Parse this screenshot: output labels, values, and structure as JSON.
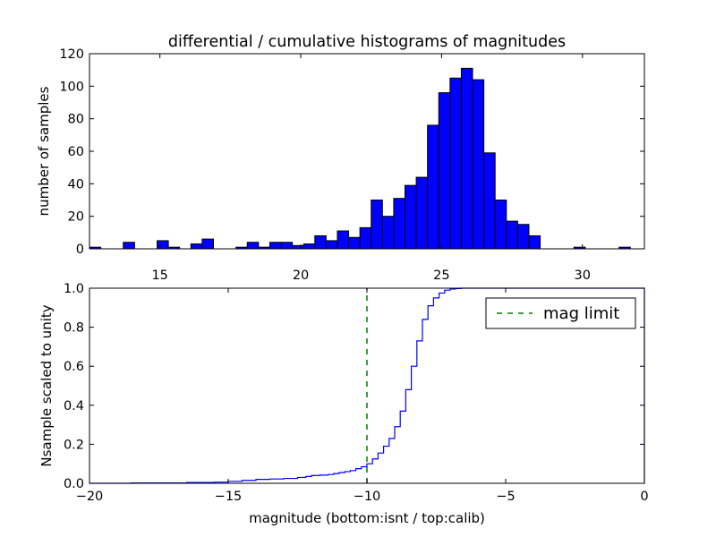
{
  "chart_data": [
    {
      "type": "bar",
      "title": "differential / cumulative histograms of magnitudes",
      "xlabel": "",
      "ylabel": "number of samples",
      "xlim": [
        12.5,
        32.2
      ],
      "ylim": [
        0,
        120
      ],
      "xticks": [
        15,
        20,
        25,
        30
      ],
      "yticks": [
        0,
        20,
        40,
        60,
        80,
        100,
        120
      ],
      "grid": false,
      "bar_color": "#0000ff",
      "bin_width": 0.4,
      "bin_starts": [
        12.5,
        12.9,
        13.3,
        13.7,
        14.1,
        14.5,
        14.9,
        15.3,
        15.7,
        16.1,
        16.5,
        16.9,
        17.3,
        17.7,
        18.1,
        18.5,
        18.9,
        19.3,
        19.7,
        20.1,
        20.5,
        20.9,
        21.3,
        21.7,
        22.1,
        22.5,
        22.9,
        23.3,
        23.7,
        24.1,
        24.5,
        24.9,
        25.3,
        25.7,
        26.1,
        26.5,
        26.9,
        27.3,
        27.7,
        28.1,
        28.5,
        28.9,
        29.3,
        29.7,
        30.1,
        30.5,
        30.9,
        31.3,
        31.7
      ],
      "values": [
        1,
        0,
        0,
        4,
        0,
        0,
        5,
        1,
        0,
        3,
        6,
        0,
        0,
        1,
        4,
        1,
        4,
        4,
        2,
        3,
        8,
        5,
        11,
        7,
        13,
        30,
        20,
        31,
        39,
        44,
        76,
        96,
        105,
        111,
        104,
        59,
        30,
        17,
        15,
        8,
        0,
        0,
        0,
        1,
        0,
        0,
        0,
        1,
        0
      ]
    },
    {
      "type": "line",
      "title": "",
      "xlabel": "magnitude (bottom:isnt / top:calib)",
      "ylabel": "Nsample scaled to unity",
      "xlim": [
        -20,
        0
      ],
      "ylim": [
        0,
        1.0
      ],
      "xticks": [
        -20,
        -15,
        -10,
        -5,
        0
      ],
      "xtick_labels": [
        "−20",
        "−15",
        "−10",
        "−5",
        "0"
      ],
      "yticks": [
        0.0,
        0.2,
        0.4,
        0.6,
        0.8,
        1.0
      ],
      "ytick_labels": [
        "0.0",
        "0.2",
        "0.4",
        "0.6",
        "0.8",
        "1.0"
      ],
      "grid": false,
      "legend_position": "top-right",
      "series": [
        {
          "name": "",
          "style": "steps",
          "color": "#0000ff",
          "x": [
            -20,
            -18.5,
            -16.5,
            -15.5,
            -15.0,
            -14.5,
            -14.0,
            -13.5,
            -13.0,
            -12.5,
            -12.2,
            -12.0,
            -11.7,
            -11.4,
            -11.2,
            -11.0,
            -10.8,
            -10.6,
            -10.4,
            -10.2,
            -10.0,
            -9.8,
            -9.6,
            -9.4,
            -9.2,
            -9.0,
            -8.8,
            -8.6,
            -8.4,
            -8.2,
            -8.0,
            -7.8,
            -7.6,
            -7.4,
            -7.2,
            -7.0,
            -6.8,
            -6.6,
            -6.4,
            -6.0,
            -0.1,
            0.0
          ],
          "y": [
            0.0,
            0.002,
            0.004,
            0.006,
            0.01,
            0.015,
            0.02,
            0.022,
            0.025,
            0.03,
            0.035,
            0.04,
            0.042,
            0.045,
            0.05,
            0.055,
            0.06,
            0.065,
            0.075,
            0.085,
            0.1,
            0.125,
            0.155,
            0.19,
            0.23,
            0.29,
            0.37,
            0.48,
            0.6,
            0.73,
            0.84,
            0.91,
            0.95,
            0.975,
            0.99,
            0.996,
            0.998,
            1.0,
            1.0,
            1.0,
            1.0,
            0.0
          ]
        },
        {
          "name": "mag limit",
          "style": "dashed-vline",
          "color": "#008000",
          "x": [
            -10.0,
            -10.0
          ],
          "y": [
            0.0,
            1.0
          ]
        }
      ]
    }
  ]
}
